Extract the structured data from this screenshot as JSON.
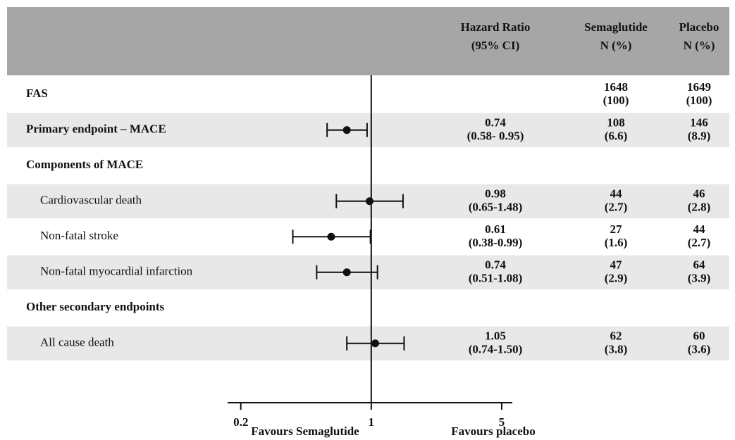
{
  "chart_data": {
    "type": "forest",
    "columns": [
      [
        "Hazard Ratio",
        "(95% CI)"
      ],
      [
        "Semaglutide",
        "N (%)"
      ],
      [
        "Placebo",
        "N (%)"
      ]
    ],
    "rows": [
      {
        "label": "FAS",
        "level": 0,
        "sema_n": 1648,
        "sema_pct": {
          "value": 100,
          "label": "(100)"
        },
        "placebo_n": 1649,
        "placebo_pct": {
          "value": 100,
          "label": "(100)"
        }
      },
      {
        "label": "Primary endpoint – MACE",
        "level": 0,
        "hr": 0.74,
        "lo": 0.58,
        "hi": 0.95,
        "ci_label": "(0.58- 0.95)",
        "sema_n": 108,
        "sema_pct": {
          "value": 6.6,
          "label": "(6.6)"
        },
        "placebo_n": 146,
        "placebo_pct": {
          "value": 8.9,
          "label": "(8.9)"
        }
      },
      {
        "label": "Components of MACE",
        "level": 0
      },
      {
        "label": "Cardiovascular death",
        "level": 1,
        "hr": 0.98,
        "lo": 0.65,
        "hi": 1.48,
        "ci_label": "(0.65-1.48)",
        "sema_n": 44,
        "sema_pct": {
          "value": 2.7,
          "label": "(2.7)"
        },
        "placebo_n": 46,
        "placebo_pct": {
          "value": 2.8,
          "label": "(2.8)"
        }
      },
      {
        "label": "Non-fatal stroke",
        "level": 1,
        "hr": 0.61,
        "lo": 0.38,
        "hi": 0.99,
        "ci_label": "(0.38-0.99)",
        "sema_n": 27,
        "sema_pct": {
          "value": 1.6,
          "label": "(1.6)"
        },
        "placebo_n": 44,
        "placebo_pct": {
          "value": 2.7,
          "label": "(2.7)"
        }
      },
      {
        "label": "Non-fatal myocardial infarction",
        "level": 1,
        "hr": 0.74,
        "lo": 0.51,
        "hi": 1.08,
        "ci_label": "(0.51-1.08)",
        "sema_n": 47,
        "sema_pct": {
          "value": 2.9,
          "label": "(2.9)"
        },
        "placebo_n": 64,
        "placebo_pct": {
          "value": 3.9,
          "label": "(3.9)"
        }
      },
      {
        "label": "Other secondary endpoints",
        "level": 0
      },
      {
        "label": "All cause death",
        "level": 1,
        "hr": 1.05,
        "lo": 0.74,
        "hi": 1.5,
        "ci_label": "(0.74-1.50)",
        "sema_n": 62,
        "sema_pct": {
          "value": 3.8,
          "label": "(3.8)"
        },
        "placebo_n": 60,
        "placebo_pct": {
          "value": 3.6,
          "label": "(3.6)"
        }
      }
    ],
    "log_scale": true,
    "xlim": [
      0.17,
      5.7
    ],
    "xticks": [
      0.2,
      1,
      5
    ],
    "xlabels": [
      "Favours Semaglutide",
      "Favours placebo"
    ]
  }
}
